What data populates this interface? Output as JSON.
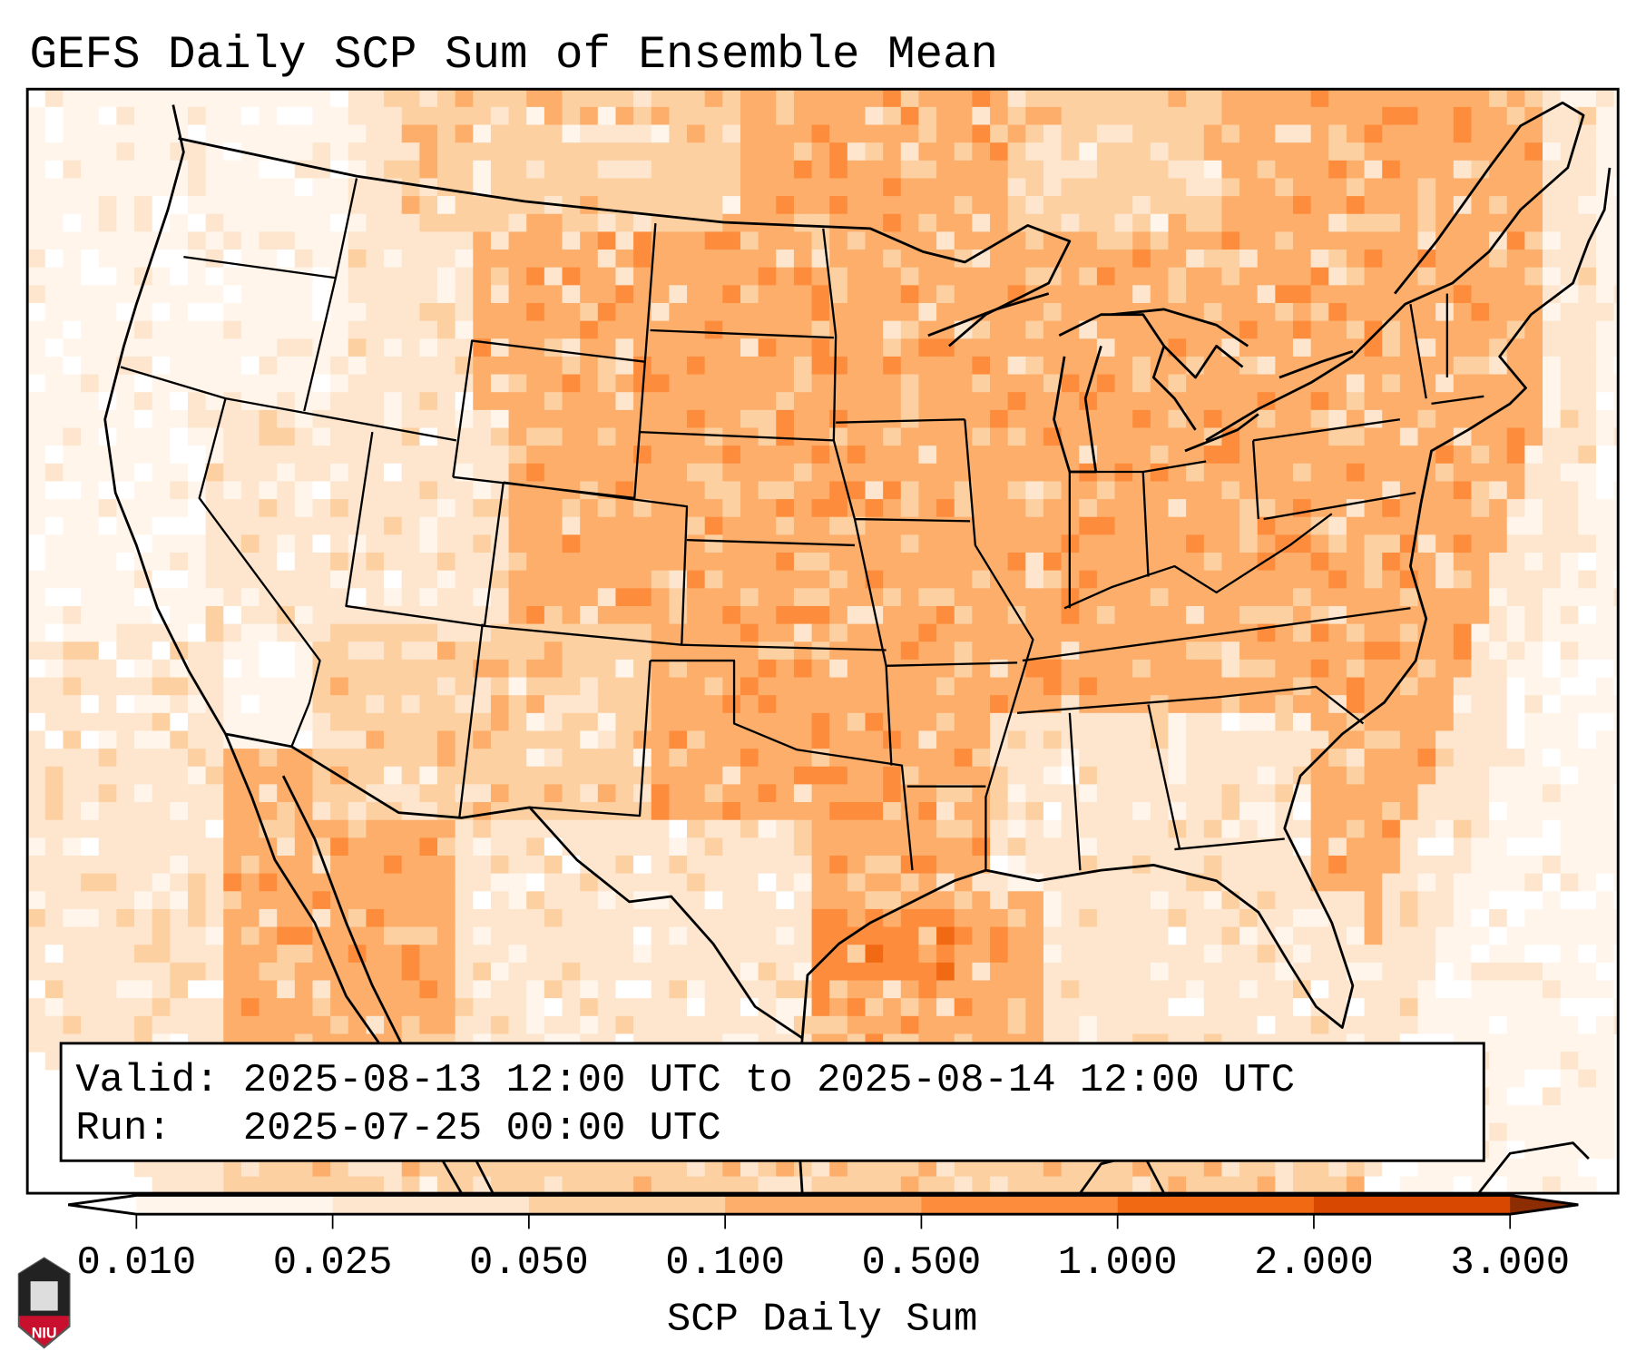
{
  "chart_data": {
    "type": "heatmap",
    "title": "GEFS Daily SCP Sum of Ensemble Mean",
    "region": "Contiguous United States",
    "colorbar": {
      "label": "SCP Daily Sum",
      "levels": [
        "0.010",
        "0.025",
        "0.050",
        "0.100",
        "0.500",
        "1.000",
        "2.000",
        "3.000"
      ],
      "colors": [
        "#fff5eb",
        "#fee6ce",
        "#fdd0a2",
        "#fdae6b",
        "#fd8d3c",
        "#f16913",
        "#d94801"
      ],
      "under_color": "#ffffff",
      "over_color": "#8c2d04",
      "extend": "both"
    },
    "info": {
      "valid_line": "Valid: 2025-08-13 12:00 UTC to 2025-08-14 12:00 UTC",
      "run_line": "Run:   2025-07-25 00:00 UTC"
    }
  },
  "logo": {
    "text": "NIU"
  }
}
